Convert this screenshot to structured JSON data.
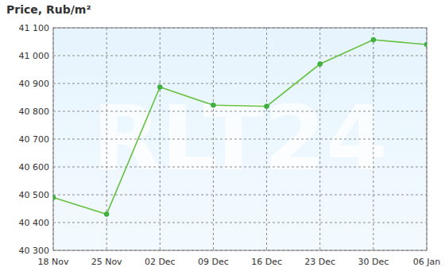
{
  "chart_data": {
    "type": "line",
    "title": "Price, Rub/m²",
    "annotations": [
      "RLT24"
    ],
    "categories": [
      "18 Nov",
      "25 Nov",
      "02 Dec",
      "09 Dec",
      "16 Dec",
      "23 Dec",
      "30 Dec",
      "06 Jan"
    ],
    "values": [
      40490,
      40430,
      40887,
      40822,
      40818,
      40970,
      41057,
      41040
    ],
    "color": "#66c03f",
    "marker": "circle",
    "ylim": [
      40300,
      41100
    ],
    "yticks": [
      {
        "value": 40300,
        "label": "40 300"
      },
      {
        "value": 40400,
        "label": "40 400"
      },
      {
        "value": 40500,
        "label": "40 500"
      },
      {
        "value": 40600,
        "label": "40 600"
      },
      {
        "value": 40700,
        "label": "40 700"
      },
      {
        "value": 40800,
        "label": "40 800"
      },
      {
        "value": 40900,
        "label": "40 900"
      },
      {
        "value": 41000,
        "label": "41 000"
      },
      {
        "value": 41100,
        "label": "41 100"
      }
    ],
    "grid": true
  }
}
